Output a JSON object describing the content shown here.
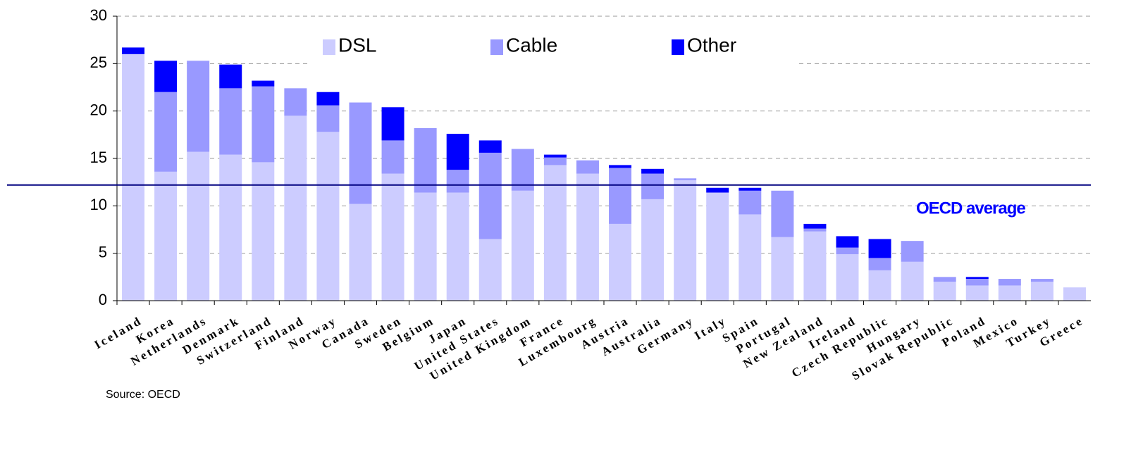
{
  "chart_data": {
    "type": "stacked_bar",
    "categories": [
      "Iceland",
      "Korea",
      "Netherlands",
      "Denmark",
      "Switzerland",
      "Finland",
      "Norway",
      "Canada",
      "Sweden",
      "Belgium",
      "Japan",
      "United States",
      "United Kingdom",
      "France",
      "Luxembourg",
      "Austria",
      "Australia",
      "Germany",
      "Italy",
      "Spain",
      "Portugal",
      "New Zealand",
      "Ireland",
      "Czech Republic",
      "Hungary",
      "Slovak Republic",
      "Poland",
      "Mexico",
      "Turkey",
      "Greece"
    ],
    "series": [
      {
        "name": "DSL",
        "color": "#ccccff",
        "values": [
          26.0,
          13.6,
          15.7,
          15.4,
          14.6,
          19.5,
          17.8,
          10.2,
          13.4,
          11.4,
          11.4,
          6.5,
          11.6,
          14.3,
          13.4,
          8.1,
          10.7,
          12.7,
          11.4,
          9.1,
          6.7,
          7.3,
          4.9,
          3.2,
          4.1,
          2.0,
          1.6,
          1.6,
          2.0,
          1.4
        ]
      },
      {
        "name": "Cable",
        "color": "#9999ff",
        "values": [
          0,
          8.4,
          9.6,
          7.0,
          8.0,
          2.9,
          2.8,
          10.7,
          3.5,
          6.8,
          2.4,
          9.1,
          4.4,
          0.8,
          1.4,
          5.9,
          2.7,
          0.2,
          0,
          2.5,
          4.9,
          0.3,
          0.7,
          1.3,
          2.2,
          0.5,
          0.7,
          0.7,
          0.3,
          0
        ]
      },
      {
        "name": "Other",
        "color": "#0000ff",
        "values": [
          0.7,
          3.3,
          0,
          2.5,
          0.6,
          0,
          1.4,
          0,
          3.5,
          0,
          3.8,
          1.3,
          0,
          0.3,
          0,
          0.3,
          0.5,
          0,
          0.5,
          0.3,
          0,
          0.5,
          1.2,
          2.0,
          0,
          0,
          0.2,
          0,
          0,
          0
        ]
      }
    ],
    "ylim": [
      0,
      30
    ],
    "yticks": [
      0,
      5,
      10,
      15,
      20,
      25,
      30
    ],
    "grid": true,
    "reference_line": {
      "value": 12.2,
      "label": "OECD average",
      "color": "#000080"
    },
    "source": "Source: OECD"
  }
}
